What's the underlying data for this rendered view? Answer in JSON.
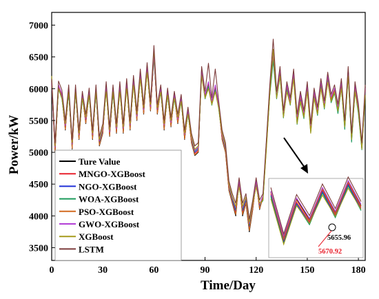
{
  "chart_data": {
    "type": "line",
    "xlabel": "Time/Day",
    "ylabel": "Power/kW",
    "xlim": [
      0,
      184
    ],
    "ylim": [
      3300,
      7200
    ],
    "xticks": [
      0,
      30,
      60,
      90,
      120,
      150,
      180
    ],
    "xtick_labels": [
      "0",
      "30",
      "60",
      "90",
      "120",
      "150",
      "180"
    ],
    "yticks": [
      3500,
      4000,
      4500,
      5000,
      5500,
      6000,
      6500,
      7000
    ],
    "ytick_labels": [
      "3500",
      "4000",
      "4500",
      "5000",
      "5500",
      "6000",
      "6500",
      "7000"
    ],
    "grid": false,
    "legend_position": "bottom-left",
    "x": [
      0,
      2,
      4,
      6,
      8,
      10,
      12,
      14,
      16,
      18,
      20,
      22,
      24,
      26,
      28,
      30,
      32,
      34,
      36,
      38,
      40,
      42,
      44,
      46,
      48,
      50,
      52,
      54,
      56,
      58,
      60,
      62,
      64,
      66,
      68,
      70,
      72,
      74,
      76,
      78,
      80,
      82,
      84,
      86,
      88,
      90,
      92,
      94,
      96,
      98,
      100,
      102,
      104,
      106,
      108,
      110,
      112,
      114,
      116,
      118,
      120,
      122,
      124,
      126,
      128,
      130,
      132,
      134,
      136,
      138,
      140,
      142,
      144,
      146,
      148,
      150,
      152,
      154,
      156,
      158,
      160,
      162,
      164,
      166,
      168,
      170,
      172,
      174,
      176,
      178,
      180,
      182,
      184
    ],
    "series": [
      {
        "name": "Ture Value",
        "color": "#000000",
        "values": [
          6100,
          5000,
          6050,
          5900,
          5350,
          6000,
          5050,
          6000,
          5200,
          5900,
          5450,
          5950,
          5200,
          6000,
          5100,
          5300,
          6050,
          5250,
          6000,
          5300,
          6050,
          5300,
          6100,
          5350,
          6150,
          5500,
          6250,
          5600,
          6350,
          5650,
          6550,
          5600,
          6000,
          5350,
          5950,
          5400,
          5900,
          5450,
          5850,
          5200,
          5650,
          5150,
          4950,
          5000,
          6300,
          5900,
          6100,
          5800,
          6050,
          5750,
          5200,
          5000,
          4400,
          4200,
          4000,
          4550,
          4000,
          4200,
          3750,
          4100,
          4550,
          4100,
          4300,
          5150,
          6000,
          6550,
          5900,
          6300,
          5600,
          6050,
          5800,
          6250,
          5550,
          5900,
          5600,
          6050,
          5400,
          5950,
          5650,
          6100,
          5750,
          6200,
          5850,
          6000,
          5700,
          6100,
          5450,
          6300,
          5250,
          6050,
          5700,
          5100,
          6000
        ]
      },
      {
        "name": "MNGO-XGBoost",
        "color": "#e8202c",
        "values": [
          6080,
          5030,
          6020,
          5880,
          5370,
          5970,
          5080,
          5980,
          5230,
          5880,
          5470,
          5930,
          5230,
          5970,
          5130,
          5320,
          6020,
          5270,
          5970,
          5320,
          6020,
          5330,
          6070,
          5380,
          6120,
          5520,
          6220,
          5620,
          6320,
          5670,
          6520,
          5630,
          5980,
          5380,
          5930,
          5420,
          5880,
          5470,
          5830,
          5230,
          5630,
          5180,
          4980,
          5030,
          6270,
          5880,
          6080,
          5780,
          6020,
          5730,
          5220,
          5030,
          4430,
          4230,
          4050,
          4520,
          4050,
          4230,
          3800,
          4130,
          4520,
          4130,
          4280,
          5120,
          5950,
          6500,
          5880,
          6250,
          5580,
          6020,
          5780,
          6220,
          5500,
          5850,
          5570,
          6020,
          5350,
          5900,
          5620,
          6070,
          5720,
          6170,
          5820,
          5970,
          5650,
          6050,
          5400,
          6250,
          5200,
          6000,
          5650,
          5080,
          5970
        ]
      },
      {
        "name": "NGO-XGBoost",
        "color": "#1f2fd8",
        "values": [
          6070,
          5050,
          6010,
          5860,
          5390,
          5950,
          5100,
          5960,
          5250,
          5860,
          5490,
          5910,
          5250,
          5950,
          5150,
          5340,
          6000,
          5290,
          5950,
          5340,
          6000,
          5350,
          6050,
          5400,
          6100,
          5540,
          6200,
          5640,
          6300,
          5690,
          6500,
          5650,
          5960,
          5400,
          5910,
          5440,
          5860,
          5490,
          5810,
          5250,
          5610,
          5200,
          5000,
          5050,
          6250,
          5860,
          6060,
          5760,
          6000,
          5710,
          5240,
          5050,
          4450,
          4250,
          4080,
          4500,
          4080,
          4250,
          3830,
          4150,
          4500,
          4150,
          4260,
          5100,
          5920,
          6470,
          5860,
          6220,
          5560,
          6000,
          5760,
          6200,
          5470,
          5820,
          5550,
          6000,
          5330,
          5880,
          5600,
          6050,
          5700,
          6150,
          5800,
          5950,
          5630,
          6030,
          5380,
          6230,
          5180,
          5980,
          5630,
          5060,
          5950
        ]
      },
      {
        "name": "WOA-XGBoost",
        "color": "#1a9a5a",
        "values": [
          6060,
          5070,
          6000,
          5840,
          5410,
          5930,
          5120,
          5940,
          5270,
          5840,
          5510,
          5890,
          5270,
          5930,
          5170,
          5360,
          5980,
          5310,
          5930,
          5360,
          5980,
          5370,
          6030,
          5420,
          6080,
          5560,
          6180,
          5660,
          6280,
          5710,
          6480,
          5670,
          5940,
          5420,
          5890,
          5460,
          5840,
          5510,
          5790,
          5270,
          5590,
          5220,
          5020,
          5070,
          6230,
          5840,
          6040,
          5740,
          5980,
          5690,
          5260,
          5070,
          4470,
          4270,
          4110,
          4480,
          4110,
          4270,
          3860,
          4170,
          4480,
          4170,
          4240,
          5080,
          5890,
          6440,
          5840,
          6190,
          5540,
          5980,
          5740,
          6180,
          5440,
          5790,
          5530,
          5980,
          5310,
          5860,
          5580,
          6030,
          5680,
          6130,
          5780,
          5930,
          5610,
          6010,
          5360,
          6210,
          5160,
          5960,
          5610,
          5040,
          5930
        ]
      },
      {
        "name": "PSO-XGBoost",
        "color": "#d2691e",
        "values": [
          6090,
          5010,
          6040,
          5900,
          5360,
          5990,
          5060,
          5990,
          5210,
          5890,
          5460,
          5940,
          5210,
          5990,
          5110,
          5310,
          6040,
          5260,
          5990,
          5310,
          6040,
          5310,
          6090,
          5360,
          6140,
          5510,
          6240,
          5610,
          6340,
          5660,
          6540,
          5610,
          5990,
          5360,
          5940,
          5410,
          5890,
          5460,
          5840,
          5210,
          5640,
          5160,
          4960,
          5010,
          6290,
          5890,
          6090,
          5790,
          6040,
          5740,
          5210,
          5010,
          4410,
          4210,
          4020,
          4540,
          4020,
          4210,
          3770,
          4110,
          4540,
          4110,
          4290,
          5140,
          5980,
          6530,
          5890,
          6280,
          5590,
          6040,
          5790,
          6240,
          5530,
          5880,
          5590,
          6040,
          5380,
          5930,
          5640,
          6090,
          5740,
          6190,
          5840,
          5990,
          5680,
          6080,
          5430,
          6280,
          5230,
          6030,
          5680,
          5090,
          5990
        ]
      },
      {
        "name": "GWO-XGBoost",
        "color": "#b23fd6",
        "values": [
          6110,
          5080,
          6060,
          5920,
          5420,
          6010,
          5130,
          6010,
          5280,
          5910,
          5520,
          5960,
          5280,
          6010,
          5180,
          5370,
          6060,
          5320,
          6010,
          5370,
          6060,
          5380,
          6110,
          5430,
          6160,
          5570,
          6260,
          5670,
          6360,
          5720,
          6560,
          5680,
          6010,
          5430,
          5960,
          5470,
          5910,
          5520,
          5860,
          5280,
          5660,
          5230,
          5030,
          5080,
          6310,
          5910,
          6110,
          5810,
          6060,
          5760,
          5270,
          5080,
          4480,
          4280,
          4130,
          4560,
          4130,
          4280,
          3880,
          4180,
          4560,
          4180,
          4320,
          5160,
          6010,
          6560,
          5910,
          6310,
          5610,
          6060,
          5810,
          6260,
          5560,
          5910,
          5620,
          6060,
          5420,
          5960,
          5670,
          6110,
          5770,
          6210,
          5870,
          6010,
          5720,
          6110,
          5470,
          6310,
          5270,
          6060,
          5720,
          5120,
          6010
        ]
      },
      {
        "name": "XGBoost",
        "color": "#a59a1a",
        "values": [
          6200,
          5100,
          6000,
          5850,
          5450,
          5950,
          5150,
          5950,
          5300,
          5850,
          5550,
          5900,
          5300,
          5950,
          5200,
          5400,
          5950,
          5350,
          5950,
          5400,
          5950,
          5400,
          6000,
          5450,
          6050,
          5600,
          6150,
          5700,
          6250,
          5750,
          6620,
          5700,
          5950,
          5450,
          5900,
          5500,
          5850,
          5550,
          5800,
          5300,
          5600,
          5250,
          5050,
          5100,
          6200,
          5850,
          6000,
          5750,
          5950,
          5700,
          5300,
          5100,
          4500,
          4300,
          4150,
          4450,
          4150,
          4300,
          3900,
          4200,
          4450,
          4200,
          4250,
          5050,
          5900,
          6620,
          5850,
          6200,
          5550,
          5950,
          5750,
          6150,
          5450,
          5800,
          5550,
          5950,
          5300,
          5850,
          5600,
          6000,
          5700,
          6100,
          5800,
          5950,
          5650,
          6000,
          5400,
          6200,
          5200,
          5950,
          5650,
          5050,
          5900
        ]
      },
      {
        "name": "LSTM",
        "color": "#7b3a3a",
        "values": [
          6150,
          5150,
          6120,
          5980,
          5500,
          6060,
          5200,
          6060,
          5350,
          5960,
          5600,
          6010,
          5350,
          6060,
          5250,
          5450,
          6110,
          5400,
          6060,
          5450,
          6110,
          5450,
          6160,
          5500,
          6210,
          5650,
          6310,
          5750,
          6410,
          5800,
          6680,
          5750,
          6060,
          5500,
          6010,
          5550,
          5960,
          5600,
          5910,
          5350,
          5710,
          5300,
          5100,
          5150,
          6350,
          5960,
          6400,
          5860,
          6310,
          5810,
          5350,
          5150,
          4550,
          4350,
          4200,
          4600,
          4200,
          4350,
          3950,
          4250,
          4600,
          4250,
          4350,
          5200,
          6060,
          6780,
          5960,
          6350,
          5660,
          6110,
          5860,
          6310,
          5600,
          5960,
          5660,
          6110,
          5450,
          6010,
          5710,
          6160,
          5810,
          6260,
          5910,
          6060,
          5760,
          6160,
          5500,
          6350,
          5300,
          6110,
          5760,
          5150,
          6060
        ]
      }
    ],
    "inset": {
      "annotations": [
        "5655.96",
        "5670.92"
      ],
      "annotation_colors": [
        "#000000",
        "#e8202c"
      ]
    }
  }
}
